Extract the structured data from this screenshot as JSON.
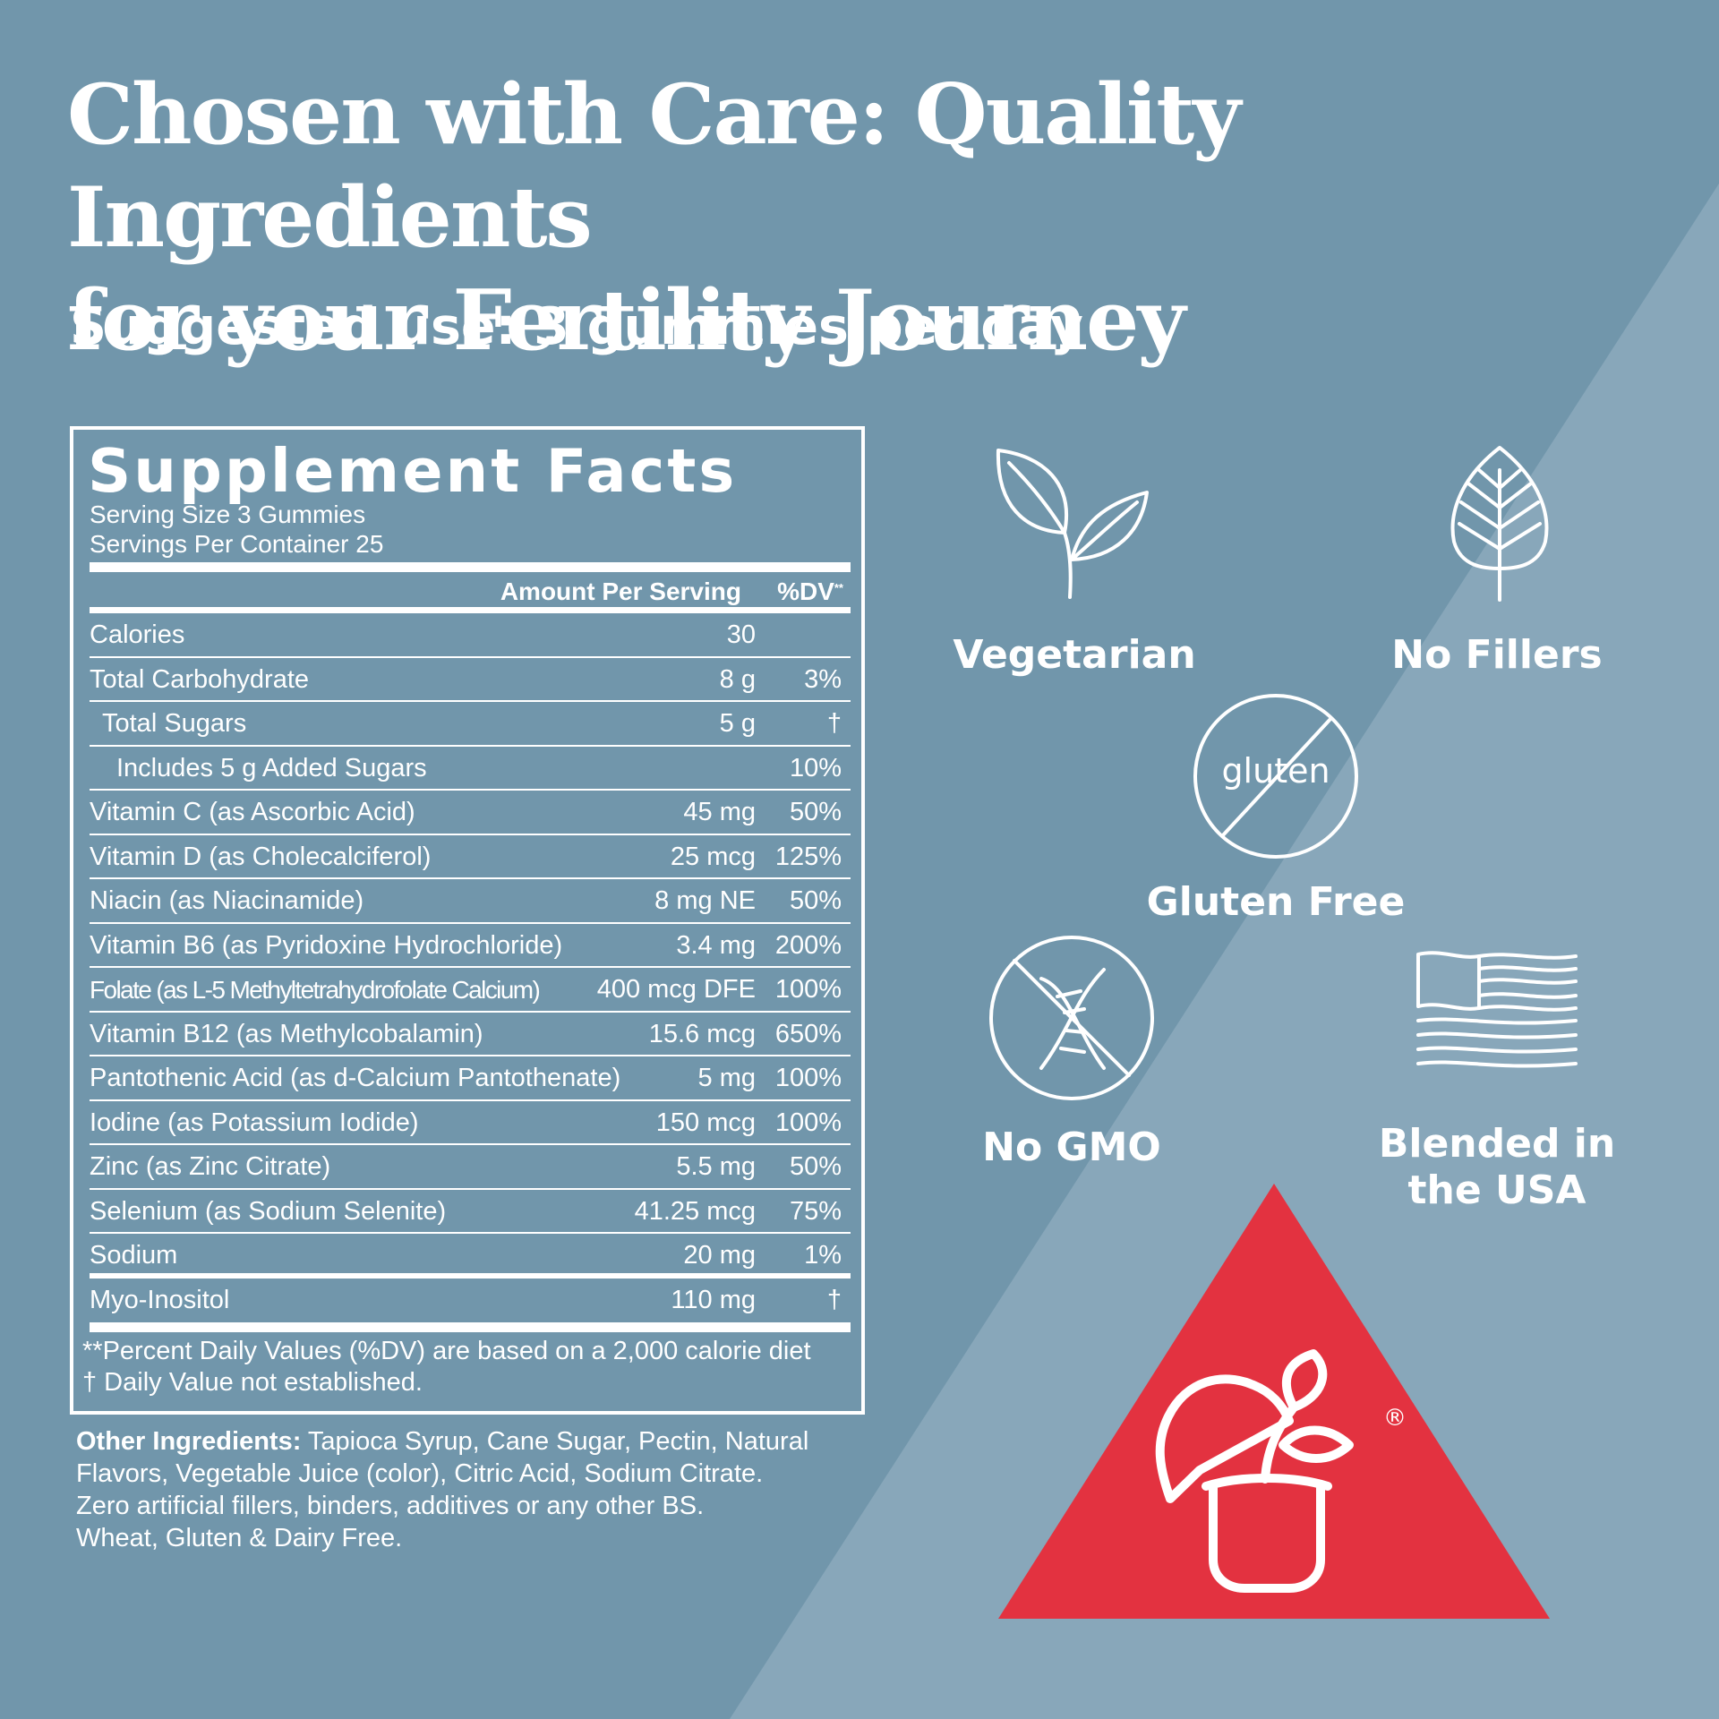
{
  "colors": {
    "background_dark": "#7196ab",
    "background_light": "#88a7ba",
    "text": "#ffffff",
    "logo_triangle": "#e33240"
  },
  "headline": {
    "line1": "Chosen with Care: Quality Ingredients",
    "line2": "for your Fertility Journey"
  },
  "suggested_use": "Suggested use: 3 gummies per day",
  "supplement_facts": {
    "title": "Supplement Facts",
    "serving_size": "Serving Size 3 Gummies",
    "servings_per_container": "Servings Per Container 25",
    "col_amount": "Amount Per Serving",
    "col_dv": "%DV",
    "col_dv_mark": "**",
    "rows": [
      {
        "name": "Calories",
        "amount": "30",
        "dv": ""
      },
      {
        "name": "Total Carbohydrate",
        "amount": "8 g",
        "dv": "3%"
      },
      {
        "name": "Total Sugars",
        "amount": "5 g",
        "dv": "†"
      },
      {
        "name": "Includes 5 g Added Sugars",
        "amount": "",
        "dv": "10%"
      },
      {
        "name": "Vitamin C (as Ascorbic Acid)",
        "amount": "45 mg",
        "dv": "50%"
      },
      {
        "name": "Vitamin D (as Cholecalciferol)",
        "amount": "25 mcg",
        "dv": "125%"
      },
      {
        "name": "Niacin (as Niacinamide)",
        "amount": "8 mg NE",
        "dv": "50%"
      },
      {
        "name": "Vitamin B6 (as Pyridoxine Hydrochloride)",
        "amount": "3.4 mg",
        "dv": "200%"
      },
      {
        "name": "Folate (as L-5 Methyltetrahydrofolate Calcium)",
        "amount": "400 mcg DFE",
        "dv": "100%"
      },
      {
        "name": "Vitamin B12 (as Methylcobalamin)",
        "amount": "15.6 mcg",
        "dv": "650%"
      },
      {
        "name": "Pantothenic Acid (as d-Calcium Pantothenate)",
        "amount": "5 mg",
        "dv": "100%"
      },
      {
        "name": "Iodine (as Potassium Iodide)",
        "amount": "150 mcg",
        "dv": "100%"
      },
      {
        "name": "Zinc (as Zinc Citrate)",
        "amount": "5.5 mg",
        "dv": "50%"
      },
      {
        "name": "Selenium (as Sodium Selenite)",
        "amount": "41.25 mcg",
        "dv": "75%"
      },
      {
        "name": "Sodium",
        "amount": "20 mg",
        "dv": "1%"
      },
      {
        "name": "Myo-Inositol",
        "amount": "110 mg",
        "dv": "†"
      }
    ],
    "footnote1": "**Percent Daily Values (%DV) are based on a 2,000 calorie diet",
    "footnote2": "† Daily Value not established."
  },
  "other_ingredients": {
    "label": "Other Ingredients:",
    "text": " Tapioca Syrup, Cane Sugar, Pectin, Natural Flavors, Vegetable Juice (color), Citric Acid, Sodium Citrate.",
    "line2": "Zero artificial fillers, binders, additives or any other BS.",
    "line3": "Wheat, Gluten & Dairy Free."
  },
  "badges": {
    "vegetarian": {
      "label": "Vegetarian",
      "icon": "leaves-icon"
    },
    "no_fillers": {
      "label": "No Fillers",
      "icon": "leaf-icon"
    },
    "gluten_free": {
      "label": "Gluten Free",
      "icon": "no-gluten-icon",
      "icon_text": "gluten"
    },
    "no_gmo": {
      "label": "No GMO",
      "icon": "no-dna-icon"
    },
    "usa": {
      "label_line1": "Blended in",
      "label_line2": "the USA",
      "icon": "flag-icon"
    }
  },
  "logo": {
    "registered_mark": "®",
    "icon": "capsule-plant-logo"
  }
}
